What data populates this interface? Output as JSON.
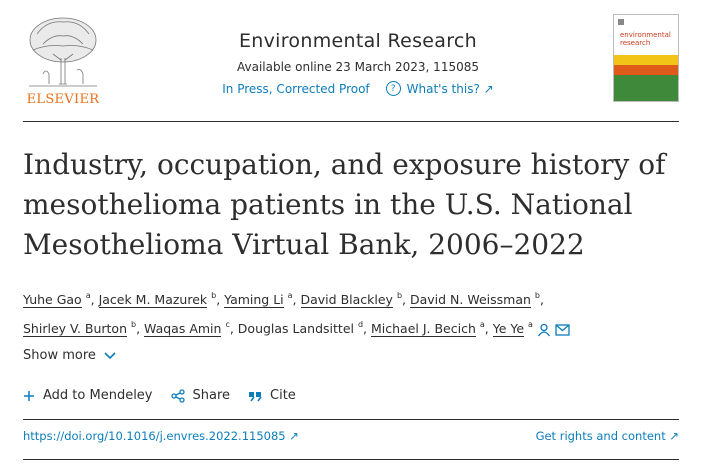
{
  "header": {
    "publisher": "ELSEVIER",
    "journal_title": "Environmental Research",
    "available_online": "Available online 23 March 2023, 115085",
    "status_link": "In Press, Corrected Proof",
    "whats_this": "What's this?",
    "cover_text": "environmental research"
  },
  "article": {
    "title": "Industry, occupation, and exposure history of mesothelioma patients in the U.S. National Mesothelioma Virtual Bank, 2006–2022"
  },
  "authors": [
    {
      "name": "Yuhe Gao",
      "aff": "a",
      "linked": true
    },
    {
      "name": "Jacek M. Mazurek",
      "aff": "b",
      "linked": true
    },
    {
      "name": "Yaming Li",
      "aff": "a",
      "linked": true
    },
    {
      "name": "David Blackley",
      "aff": "b",
      "linked": true
    },
    {
      "name": "David N. Weissman",
      "aff": "b",
      "linked": true
    },
    {
      "name": "Shirley V. Burton",
      "aff": "b",
      "linked": true
    },
    {
      "name": "Waqas Amin",
      "aff": "c",
      "linked": true
    },
    {
      "name": "Douglas Landsittel",
      "aff": "d",
      "linked": false
    },
    {
      "name": "Michael J. Becich",
      "aff": "a",
      "linked": true
    },
    {
      "name": "Ye Ye",
      "aff": "a",
      "linked": true
    }
  ],
  "show_more": "Show more",
  "actions": {
    "mendeley": "Add to Mendeley",
    "share": "Share",
    "cite": "Cite"
  },
  "links": {
    "doi": "https://doi.org/10.1016/j.envres.2022.115085",
    "rights": "Get rights and content"
  },
  "colors": {
    "link": "#0c7dbb",
    "elsevier_orange": "#e9711c",
    "text": "#2e2e2e"
  }
}
